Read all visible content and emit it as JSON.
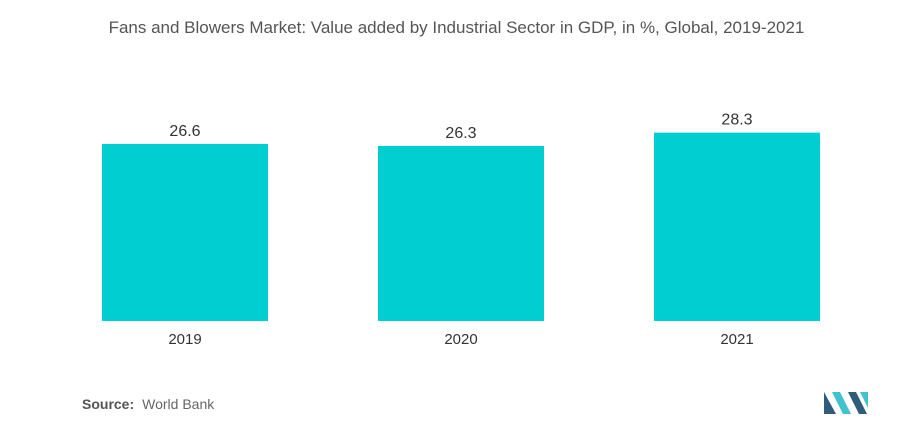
{
  "chart_data": {
    "type": "bar",
    "title": "Fans and Blowers Market: Value added by Industrial Sector in GDP, in %, Global, 2019-2021",
    "categories": [
      "2019",
      "2020",
      "2021"
    ],
    "values": [
      26.6,
      26.3,
      28.3
    ],
    "value_labels": [
      "26.6",
      "26.3",
      "28.3"
    ],
    "xlabel": "",
    "ylabel": "",
    "ylim": [
      0,
      30.2
    ],
    "grid": false,
    "legend": "none",
    "bar_color": "#00CED1"
  },
  "footer": {
    "source_label": "Source:",
    "source_value": "World Bank"
  },
  "colors": {
    "logo_dark": "#2E5C7A",
    "logo_light": "#3FC3CF"
  }
}
